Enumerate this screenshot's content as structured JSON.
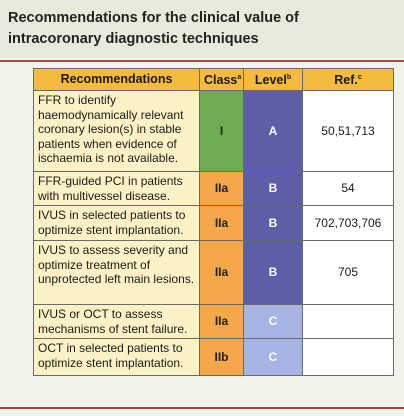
{
  "title": "Recommendations for the clinical value of intracoronary diagnostic techniques",
  "table": {
    "header": [
      {
        "text": "Recommendations"
      },
      {
        "text": "Class",
        "note": "a"
      },
      {
        "text": "Level",
        "note": "b"
      },
      {
        "text": "Ref.",
        "note": "c"
      }
    ],
    "rows": [
      [
        "FFR to identify haemodynamically relevant coronary lesion(s) in stable patients when evidence of ischaemia is not available.",
        "I",
        "A",
        "50,51,713"
      ],
      [
        "FFR-guided PCI in patients with multivessel disease.",
        "IIa",
        "B",
        "54"
      ],
      [
        "IVUS in selected patients to optimize stent implantation.",
        "IIa",
        "B",
        "702,703,706"
      ],
      [
        "IVUS to assess severity and optimize treatment of unprotected left main lesions.",
        "IIa",
        "B",
        "705"
      ],
      [
        "IVUS or OCT to assess mechanisms of stent failure.",
        "IIa",
        "C",
        ""
      ],
      [
        "OCT in selected patients to optimize stent implantation.",
        "IIb",
        "C",
        ""
      ]
    ]
  }
}
